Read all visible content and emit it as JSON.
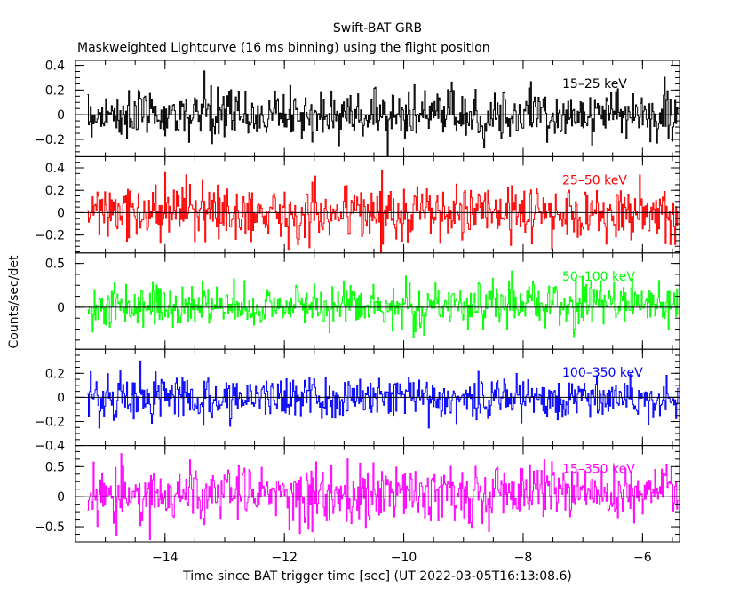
{
  "title": "Swift-BAT GRB",
  "subtitle": "Maskweighted Lightcurve (16 ms binning) using the flight position",
  "xlabel": "Time since BAT trigger time [sec] (UT 2022-03-05T16:13:08.6)",
  "ylabel": "Counts/sec/det",
  "chart_data": {
    "type": "line",
    "title": "Swift-BAT GRB",
    "subtitle": "Maskweighted Lightcurve (16 ms binning) using the flight position",
    "xlabel": "Time since BAT trigger time [sec] (UT 2022-03-05T16:13:08.6)",
    "ylabel": "Counts/sec/det",
    "xlim": [
      -15.5,
      -5.38
    ],
    "x_range_data": [
      -15.3,
      -5.4
    ],
    "bin_width_sec": 0.016,
    "x_ticks": [
      -14,
      -12,
      -10,
      -8,
      -6
    ],
    "grid": false,
    "panels": [
      {
        "name": "15-25 keV",
        "label": "15–25 keV",
        "color": "#000000",
        "ylim": [
          -0.34,
          0.44
        ],
        "yticks": [
          -0.2,
          0,
          0.2,
          0.4
        ],
        "ytick_labels": [
          "−0.2",
          "0",
          "0.2",
          "0.4"
        ],
        "noise_sigma": 0.1,
        "clip": [
          -0.34,
          0.44
        ],
        "trend": [
          0,
          0
        ]
      },
      {
        "name": "25-50 keV",
        "label": "25–50 keV",
        "color": "#ff0000",
        "ylim": [
          -0.36,
          0.5
        ],
        "yticks": [
          -0.2,
          0,
          0.2,
          0.4
        ],
        "ytick_labels": [
          "−0.2",
          "0",
          "0.2",
          "0.4"
        ],
        "noise_sigma": 0.12,
        "clip": [
          -0.36,
          0.5
        ],
        "trend": [
          0,
          0
        ]
      },
      {
        "name": "50-100 keV",
        "label": "50–100 keV",
        "color": "#00ff00",
        "ylim": [
          -0.48,
          0.62
        ],
        "yticks": [
          0,
          0.5
        ],
        "ytick_labels": [
          "0",
          "0.5"
        ],
        "noise_sigma": 0.13,
        "clip": [
          -0.45,
          0.62
        ],
        "trend": [
          0,
          0.05
        ]
      },
      {
        "name": "100-350 keV",
        "label": "100–350 keV",
        "color": "#0000ff",
        "ylim": [
          -0.4,
          0.4
        ],
        "yticks": [
          -0.4,
          -0.2,
          0,
          0.2
        ],
        "ytick_labels": [
          "−0.4",
          "−0.2",
          "0",
          "0.2"
        ],
        "noise_sigma": 0.09,
        "clip": [
          -0.4,
          0.4
        ],
        "trend": [
          0,
          0
        ]
      },
      {
        "name": "15-350 keV",
        "label": "15–350 keV",
        "color": "#ff00ff",
        "ylim": [
          -0.75,
          0.85
        ],
        "yticks": [
          -0.5,
          0,
          0.5
        ],
        "ytick_labels": [
          "−0.5",
          "0",
          "0.5"
        ],
        "noise_sigma": 0.24,
        "clip": [
          -0.75,
          0.85
        ],
        "trend": [
          0,
          0.12
        ]
      }
    ]
  }
}
